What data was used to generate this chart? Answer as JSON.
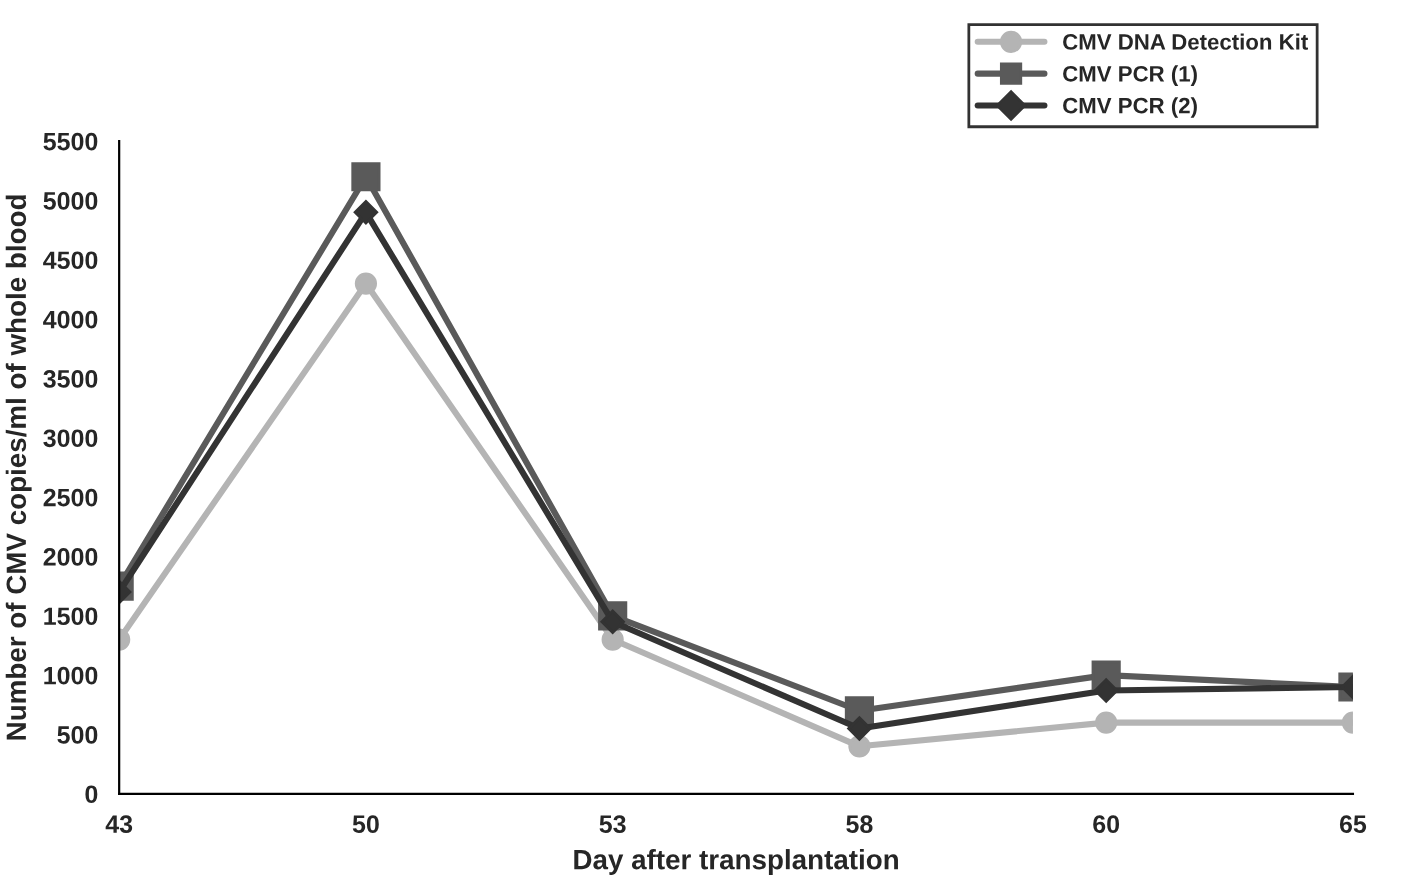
{
  "chart_data": {
    "type": "line",
    "xlabel": "Day after transplantation",
    "ylabel": "Number of CMV copies/ml of whole blood",
    "categories": [
      "43",
      "50",
      "53",
      "58",
      "60",
      "65"
    ],
    "series": [
      {
        "name": "CMV DNA Detection Kit",
        "color": "#b4b4b4",
        "marker": "circle",
        "values": [
          1300,
          4300,
          1300,
          400,
          600,
          600
        ]
      },
      {
        "name": "CMV PCR (1)",
        "color": "#5a5a5a",
        "marker": "square",
        "values": [
          1750,
          5200,
          1500,
          700,
          1000,
          900
        ]
      },
      {
        "name": "CMV PCR (2)",
        "color": "#333333",
        "marker": "diamond",
        "values": [
          1700,
          4900,
          1450,
          550,
          870,
          900
        ]
      }
    ],
    "ylim": [
      0,
      5500
    ],
    "yticks": [
      0,
      500,
      1000,
      1500,
      2000,
      2500,
      3000,
      3500,
      4000,
      4500,
      5000,
      5500
    ],
    "grid": false,
    "legend": "top right",
    "line_style": "solid"
  }
}
